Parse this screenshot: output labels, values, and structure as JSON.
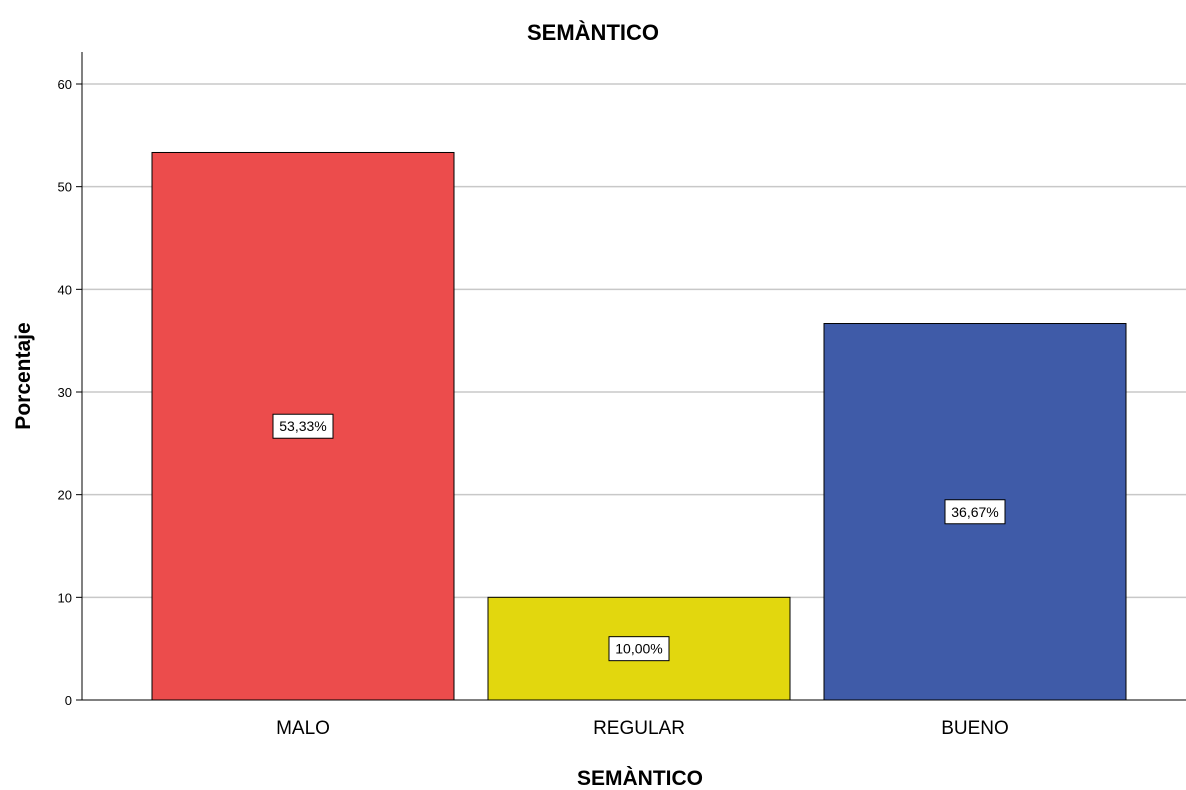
{
  "chart_data": {
    "type": "bar",
    "title": "SEMÀNTICO",
    "xlabel": "SEMÀNTICO",
    "ylabel": "Porcentaje",
    "categories": [
      "MALO",
      "REGULAR",
      "BUENO"
    ],
    "values": [
      53.33,
      10.0,
      36.67
    ],
    "data_labels": [
      "53,33%",
      "10,00%",
      "36,67%"
    ],
    "colors": [
      "#ec4c4c",
      "#e2d70e",
      "#3f5ba8"
    ],
    "ylim": [
      0,
      60
    ],
    "yticks": [
      0,
      10,
      20,
      30,
      40,
      50,
      60
    ],
    "grid": true,
    "legend": "none"
  }
}
